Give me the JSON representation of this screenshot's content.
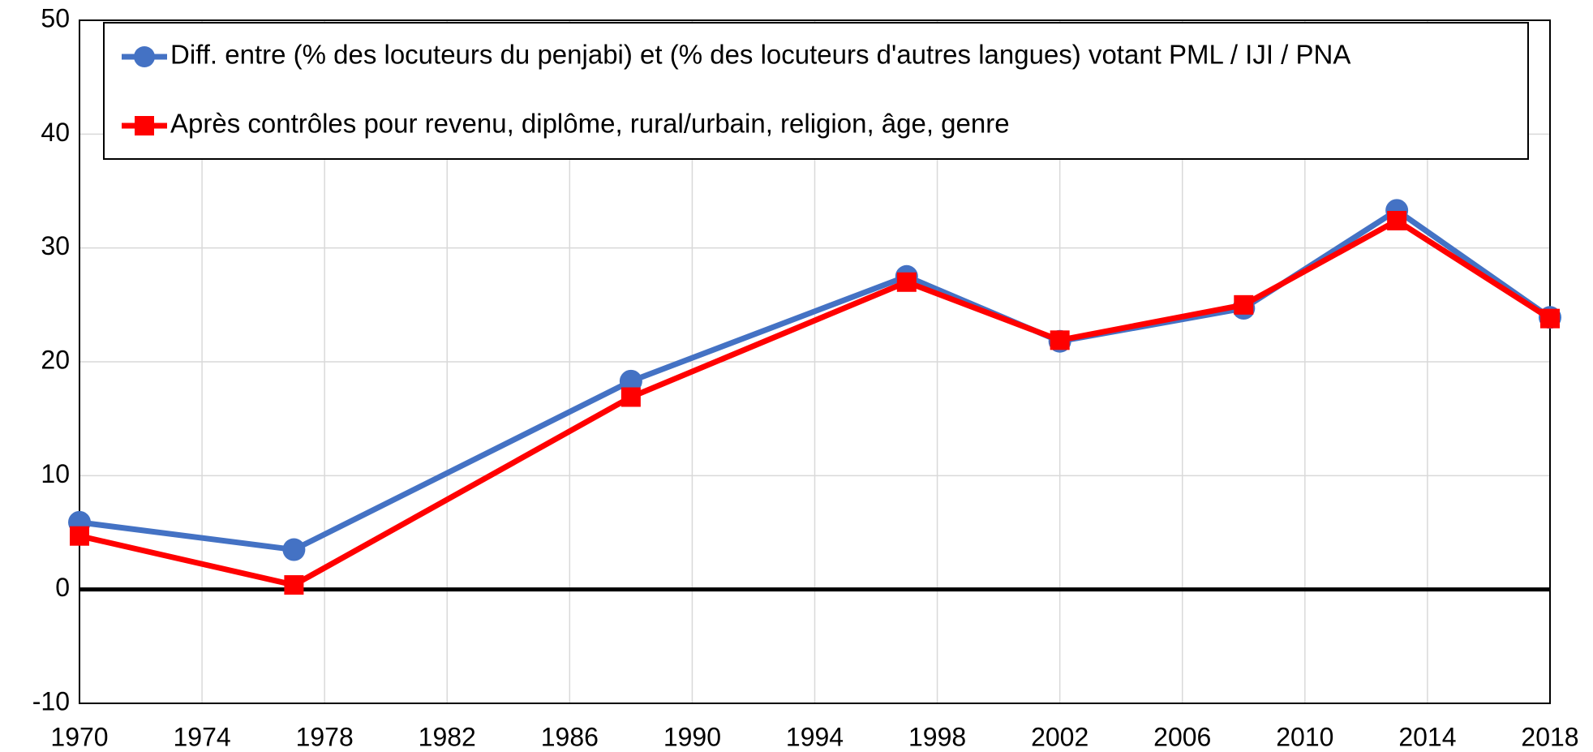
{
  "chart_data": {
    "type": "line",
    "x": [
      1970,
      1977,
      1988,
      1997,
      2002,
      2008,
      2013,
      2018
    ],
    "series": [
      {
        "name": "Diff. entre (% des locuteurs du penjabi) et (% des locuteurs d'autres langues) votant PML / IJI / PNA",
        "color": "#4472c4",
        "marker": "circle",
        "values": [
          5.9,
          3.5,
          18.3,
          27.5,
          21.8,
          24.7,
          33.3,
          23.9
        ]
      },
      {
        "name": "Après contrôles pour revenu, diplôme, rural/urbain, religion, âge, genre",
        "color": "#ff0000",
        "marker": "square",
        "values": [
          4.7,
          0.4,
          16.9,
          27.0,
          21.9,
          25.0,
          32.4,
          23.8
        ]
      }
    ],
    "xlim": [
      1970,
      2018
    ],
    "xticks": [
      1970,
      1974,
      1978,
      1982,
      1986,
      1990,
      1994,
      1998,
      2002,
      2006,
      2010,
      2014,
      2018
    ],
    "ylim": [
      -10,
      50
    ],
    "yticks": [
      -10,
      0,
      10,
      20,
      30,
      40,
      50
    ],
    "grid": true,
    "legend": "top"
  }
}
